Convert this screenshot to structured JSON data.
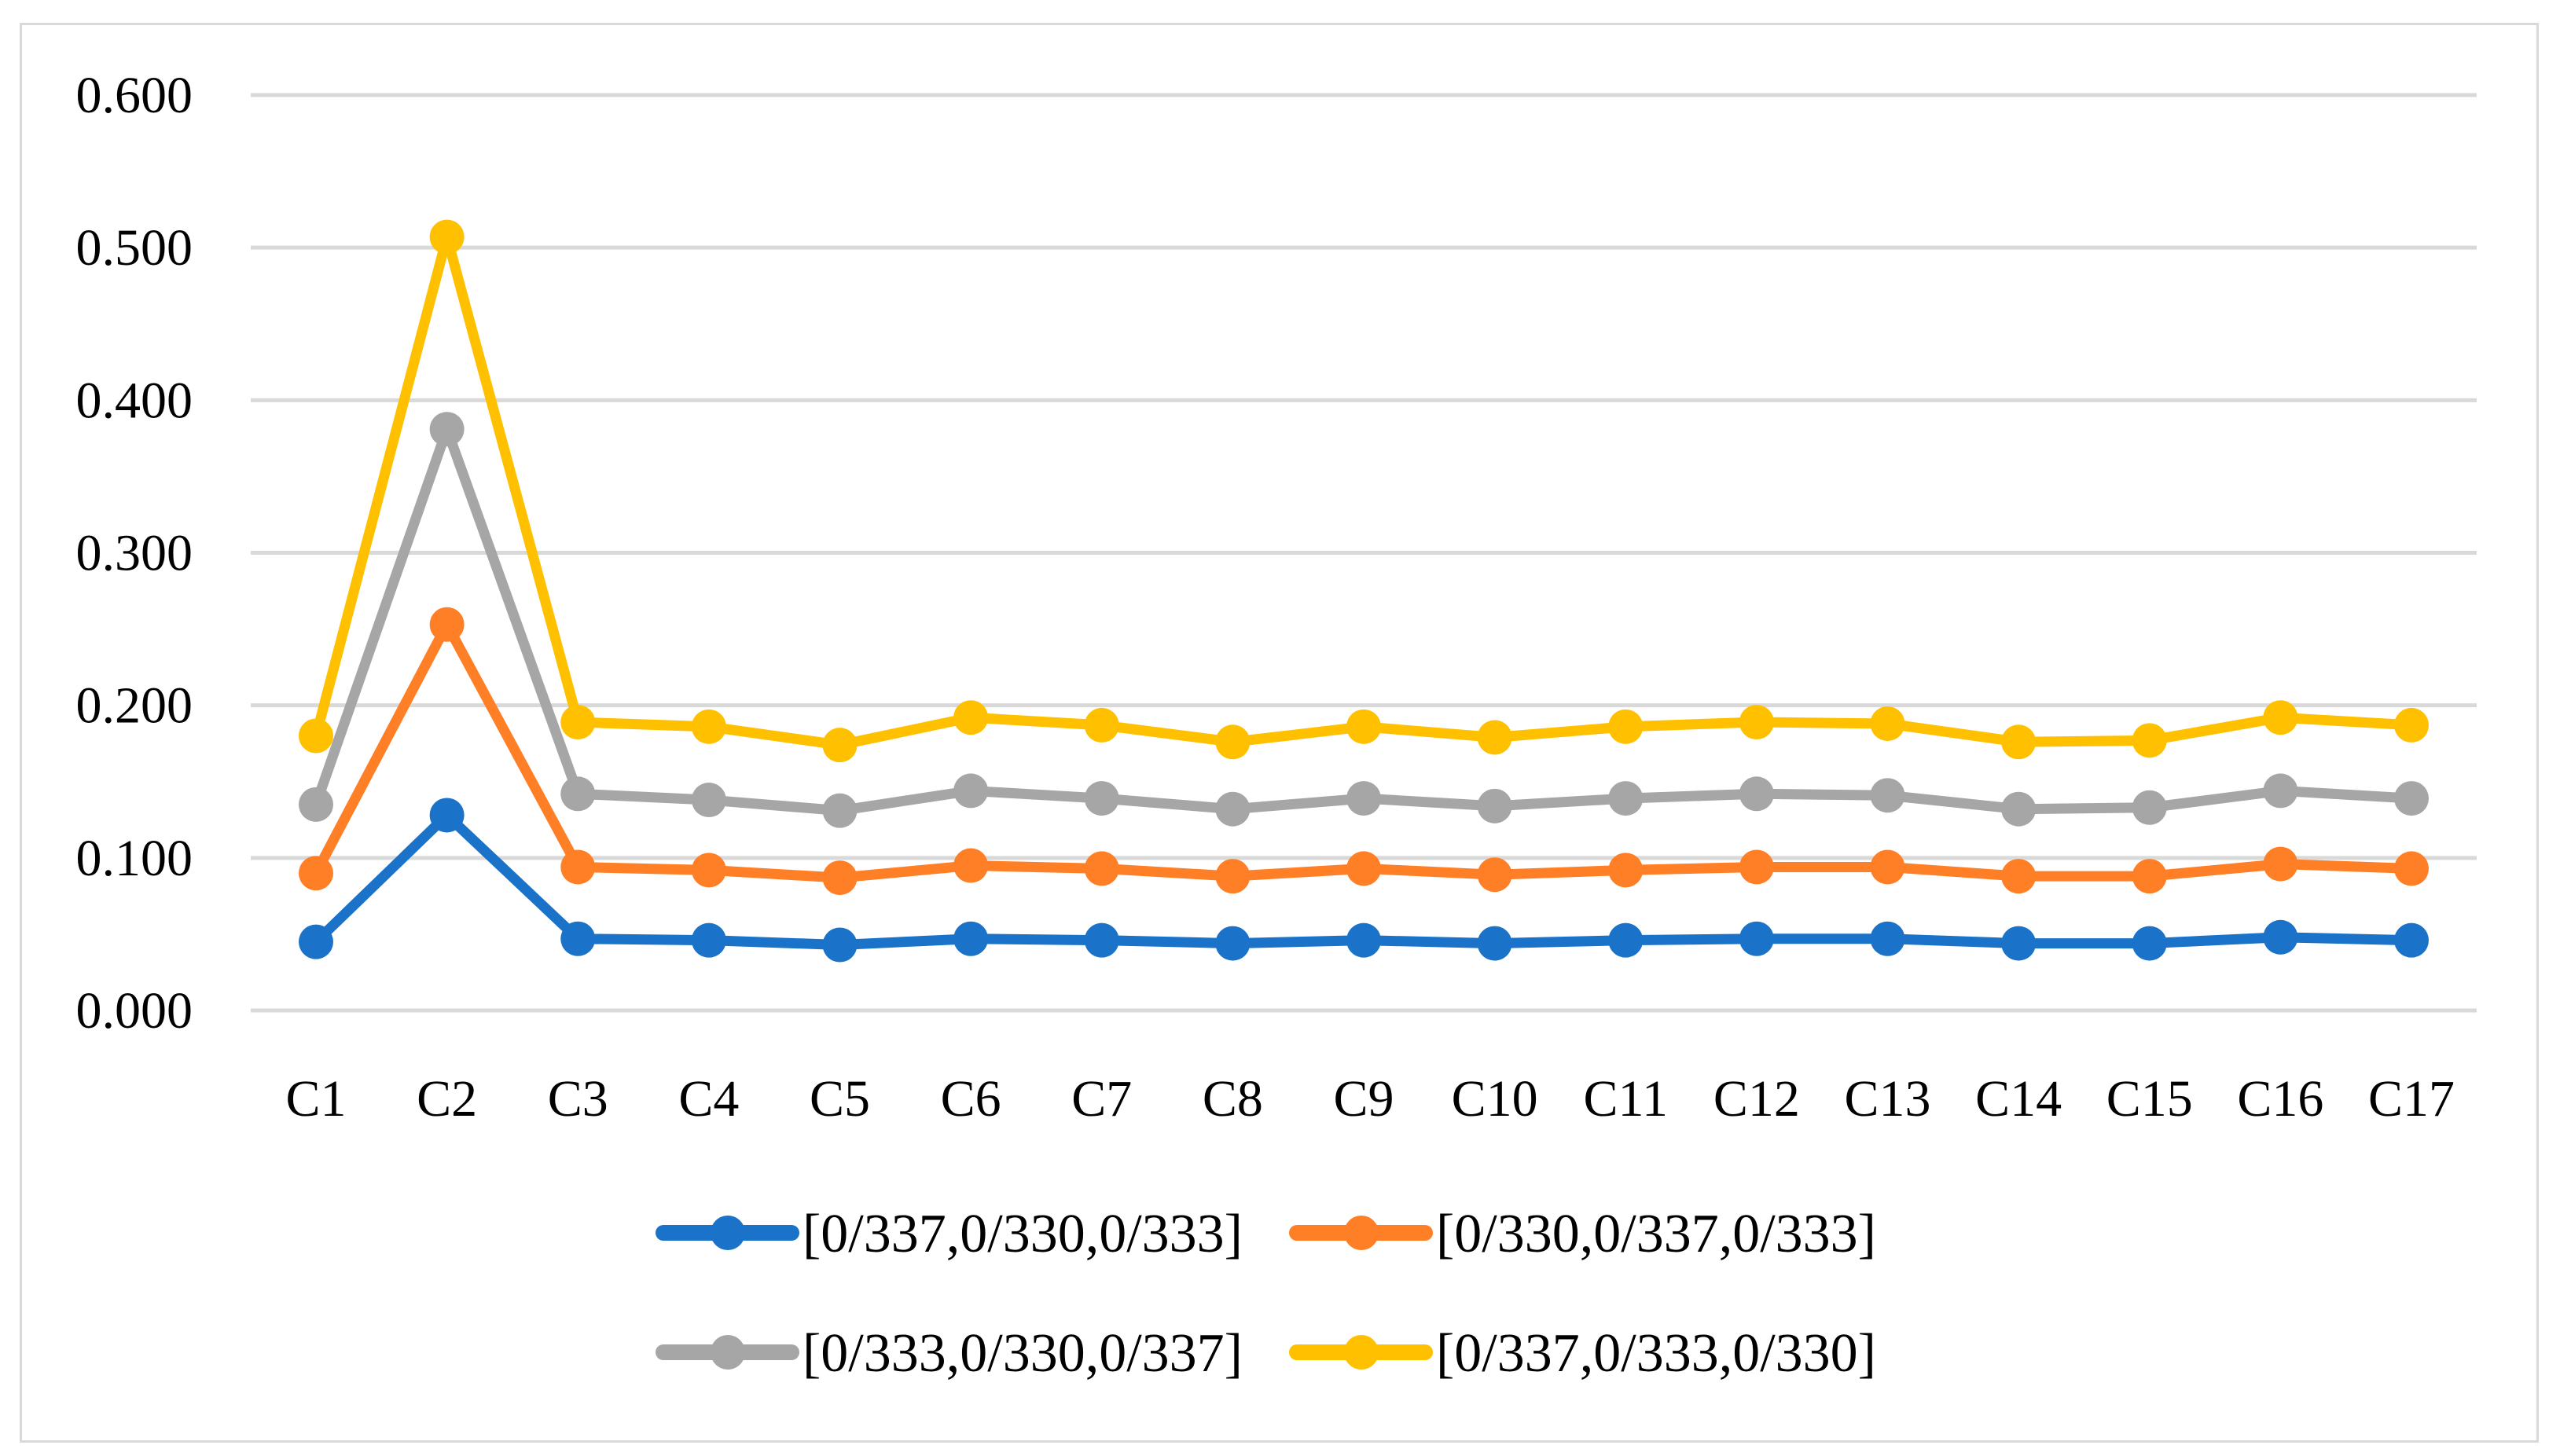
{
  "chart_data": {
    "type": "line",
    "title": "",
    "xlabel": "",
    "ylabel": "",
    "ylim": [
      0,
      0.6
    ],
    "yticks": [
      "0.000",
      "0.100",
      "0.200",
      "0.300",
      "0.400",
      "0.500",
      "0.600"
    ],
    "grid": true,
    "legend_position": "bottom",
    "categories": [
      "C1",
      "C2",
      "C3",
      "C4",
      "C5",
      "C6",
      "C7",
      "C8",
      "C9",
      "C10",
      "C11",
      "C12",
      "C13",
      "C14",
      "C15",
      "C16",
      "C17"
    ],
    "series": [
      {
        "name": "[0/337,0/330,0/333]",
        "color": "#1a73c8",
        "values": [
          0.045,
          0.128,
          0.047,
          0.046,
          0.043,
          0.047,
          0.046,
          0.044,
          0.046,
          0.044,
          0.046,
          0.047,
          0.047,
          0.044,
          0.044,
          0.048,
          0.046
        ]
      },
      {
        "name": "[0/330,0/337,0/333]",
        "color": "#ff7f27",
        "values": [
          0.09,
          0.253,
          0.094,
          0.092,
          0.087,
          0.095,
          0.093,
          0.088,
          0.093,
          0.089,
          0.092,
          0.094,
          0.094,
          0.088,
          0.088,
          0.096,
          0.093
        ]
      },
      {
        "name": "[0/333,0/330,0/337]",
        "color": "#a6a6a6",
        "values": [
          0.135,
          0.381,
          0.142,
          0.138,
          0.131,
          0.144,
          0.139,
          0.132,
          0.139,
          0.134,
          0.139,
          0.142,
          0.141,
          0.132,
          0.133,
          0.144,
          0.139
        ]
      },
      {
        "name": "[0/337,0/333,0/330]",
        "color": "#ffc000",
        "values": [
          0.18,
          0.507,
          0.189,
          0.186,
          0.174,
          0.192,
          0.187,
          0.176,
          0.186,
          0.179,
          0.186,
          0.189,
          0.188,
          0.176,
          0.177,
          0.192,
          0.187
        ]
      }
    ]
  }
}
